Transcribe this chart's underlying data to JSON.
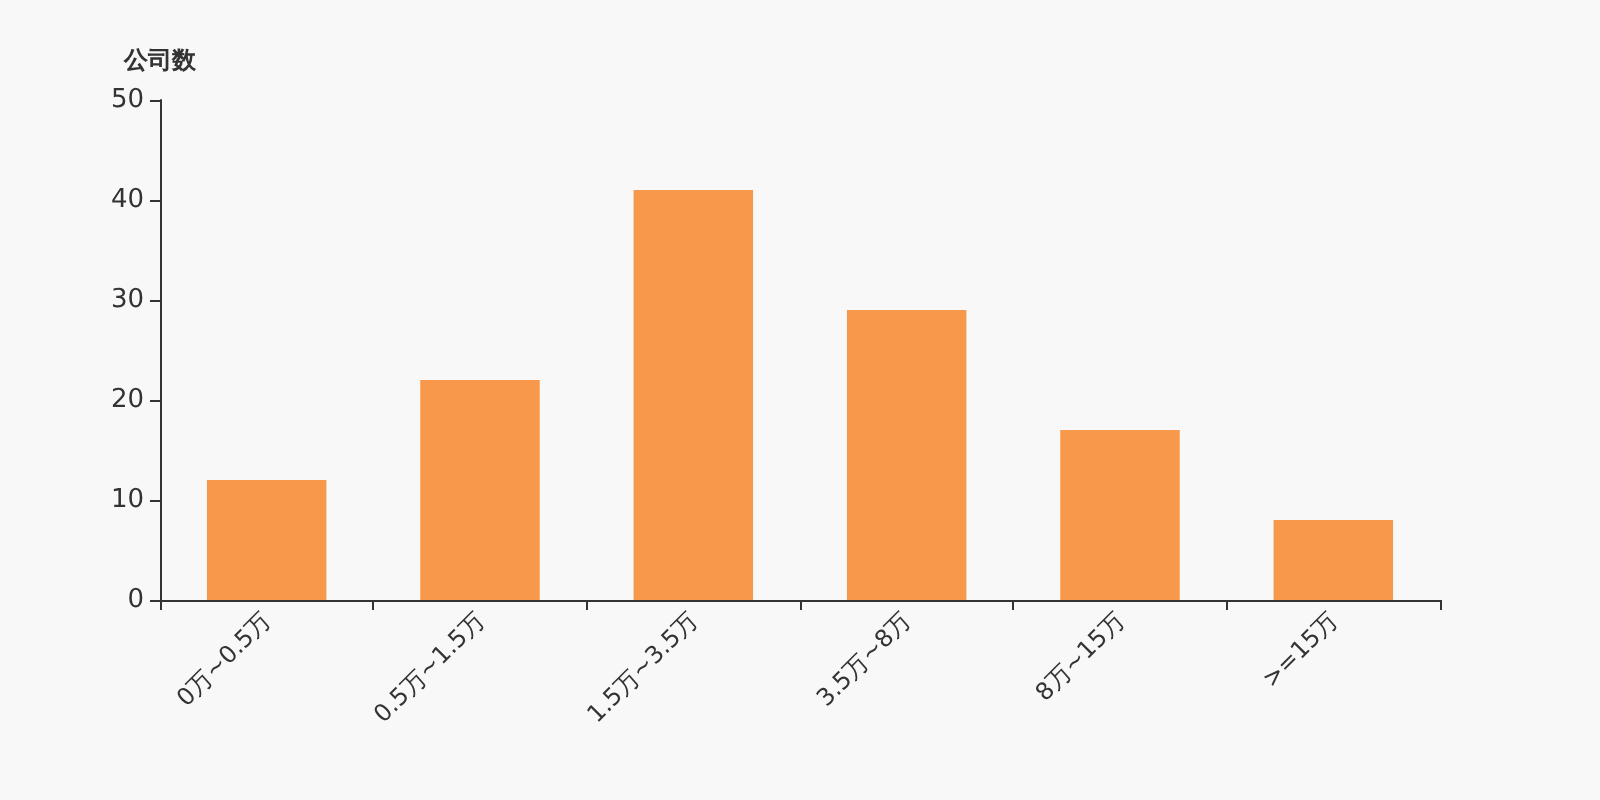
{
  "chart_data": {
    "type": "bar",
    "ylabel": "公司数",
    "categories": [
      "0万~0.5万",
      "0.5万~1.5万",
      "1.5万~3.5万",
      "3.5万~8万",
      "8万~15万",
      ">=15万"
    ],
    "values": [
      12,
      22,
      41,
      29,
      17,
      8
    ],
    "color": "#f7984a",
    "ylim": [
      0,
      50
    ],
    "yticks": [
      0,
      10,
      20,
      30,
      40,
      50
    ],
    "grid": false
  }
}
